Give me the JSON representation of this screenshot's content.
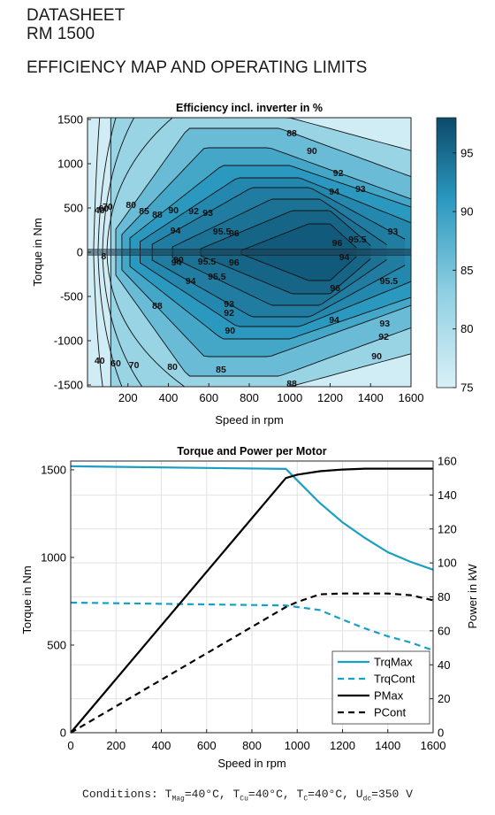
{
  "header": {
    "line1": "DATASHEET",
    "line2": "RM 1500",
    "section_title": "EFFICIENCY MAP AND OPERATING LIMITS"
  },
  "conditions": {
    "prefix": "Conditions: ",
    "t_mag_sym": "T",
    "t_mag_sub": "Mag",
    "t_mag_val": "=40°C, ",
    "t_cu_sym": "T",
    "t_cu_sub": "Cu",
    "t_cu_val": "=40°C, ",
    "t_c_sym": "T",
    "t_c_sub": "C",
    "t_c_val": "=40°C, ",
    "u_dc_sym": "U",
    "u_dc_sub": "dc",
    "u_dc_val": "=350 V"
  },
  "chart_data": [
    {
      "type": "heatmap",
      "title": "Efficiency incl. inverter in %",
      "xlabel": "Speed in rpm",
      "ylabel": "Torque in Nm",
      "xlim": [
        0,
        1600
      ],
      "ylim": [
        -1520,
        1520
      ],
      "x_ticks": [
        200,
        400,
        600,
        800,
        1000,
        1200,
        1400,
        1600
      ],
      "y_ticks": [
        1500,
        1000,
        500,
        0,
        -500,
        -1000,
        -1500
      ],
      "colorbar": {
        "range": [
          75,
          98
        ],
        "ticks": [
          95,
          90,
          85,
          80,
          75
        ],
        "colormap": [
          "#d9f0f6",
          "#0c4a6a"
        ]
      },
      "contour_levels": [
        40,
        60,
        70,
        80,
        85,
        88,
        90,
        92,
        93,
        94,
        95,
        95.5,
        96
      ],
      "contour_labels": [
        {
          "text": "88",
          "x": 1010,
          "y": 1350
        },
        {
          "text": "90",
          "x": 1110,
          "y": 1150
        },
        {
          "text": "92",
          "x": 1240,
          "y": 900
        },
        {
          "text": "93",
          "x": 1350,
          "y": 720
        },
        {
          "text": "94",
          "x": 1220,
          "y": 690
        },
        {
          "text": "40",
          "x": 60,
          "y": 480
        },
        {
          "text": "60",
          "x": 80,
          "y": 500
        },
        {
          "text": "70",
          "x": 100,
          "y": 520
        },
        {
          "text": "80",
          "x": 215,
          "y": 540
        },
        {
          "text": "85",
          "x": 280,
          "y": 470
        },
        {
          "text": "88",
          "x": 345,
          "y": 430
        },
        {
          "text": "90",
          "x": 425,
          "y": 480
        },
        {
          "text": "92",
          "x": 525,
          "y": 470
        },
        {
          "text": "93",
          "x": 595,
          "y": 450
        },
        {
          "text": "94",
          "x": 435,
          "y": 250
        },
        {
          "text": "95.5",
          "x": 665,
          "y": 240
        },
        {
          "text": "96",
          "x": 725,
          "y": 220
        },
        {
          "text": "96",
          "x": 1235,
          "y": 110
        },
        {
          "text": "95.5",
          "x": 1335,
          "y": 150
        },
        {
          "text": "93",
          "x": 1510,
          "y": 240
        },
        {
          "text": "8",
          "x": 80,
          "y": -40
        },
        {
          "text": "90",
          "x": 450,
          "y": -80
        },
        {
          "text": "94",
          "x": 440,
          "y": -110
        },
        {
          "text": "95.5",
          "x": 590,
          "y": -100
        },
        {
          "text": "96",
          "x": 725,
          "y": -110
        },
        {
          "text": "94",
          "x": 1270,
          "y": -50
        },
        {
          "text": "95.5",
          "x": 1490,
          "y": -320
        },
        {
          "text": "94",
          "x": 510,
          "y": -320
        },
        {
          "text": "95.5",
          "x": 640,
          "y": -270
        },
        {
          "text": "96",
          "x": 1225,
          "y": -400
        },
        {
          "text": "88",
          "x": 345,
          "y": -600
        },
        {
          "text": "93",
          "x": 700,
          "y": -580
        },
        {
          "text": "92",
          "x": 700,
          "y": -680
        },
        {
          "text": "90",
          "x": 705,
          "y": -880
        },
        {
          "text": "94",
          "x": 1220,
          "y": -760
        },
        {
          "text": "93",
          "x": 1470,
          "y": -800
        },
        {
          "text": "92",
          "x": 1465,
          "y": -950
        },
        {
          "text": "90",
          "x": 1430,
          "y": -1170
        },
        {
          "text": "40",
          "x": 60,
          "y": -1220
        },
        {
          "text": "60",
          "x": 140,
          "y": -1250
        },
        {
          "text": "70",
          "x": 230,
          "y": -1270
        },
        {
          "text": "80",
          "x": 420,
          "y": -1290
        },
        {
          "text": "85",
          "x": 660,
          "y": -1320
        },
        {
          "text": "88",
          "x": 1010,
          "y": -1480
        }
      ]
    },
    {
      "type": "line",
      "title": "Torque and Power per Motor",
      "xlabel": "Speed in rpm",
      "ylabel": "Torque in Nm",
      "y2label": "Power in kW",
      "xlim": [
        0,
        1600
      ],
      "ylim": [
        0,
        1550
      ],
      "y2lim": [
        0,
        160
      ],
      "x_ticks": [
        0,
        200,
        400,
        600,
        800,
        1000,
        1200,
        1400,
        1600
      ],
      "y_ticks": [
        0,
        500,
        1000,
        1500
      ],
      "y2_ticks": [
        0,
        20,
        40,
        60,
        80,
        100,
        120,
        140,
        160
      ],
      "grid": true,
      "legend_position": "bottom-right",
      "series": [
        {
          "name": "TrqMax",
          "axis": "left",
          "style": "solid",
          "color": "#1a9fc2",
          "x": [
            0,
            950,
            1000,
            1100,
            1200,
            1300,
            1400,
            1500,
            1600
          ],
          "y": [
            1520,
            1505,
            1440,
            1310,
            1200,
            1110,
            1030,
            975,
            930
          ]
        },
        {
          "name": "TrqCont",
          "axis": "left",
          "style": "dashed",
          "color": "#1a9fc2",
          "x": [
            0,
            950,
            1100,
            1200,
            1300,
            1400,
            1500,
            1600
          ],
          "y": [
            742,
            726,
            700,
            645,
            595,
            550,
            515,
            470
          ]
        },
        {
          "name": "PMax",
          "axis": "right",
          "style": "solid",
          "color": "#000000",
          "x": [
            0,
            950,
            1000,
            1100,
            1200,
            1300,
            1400,
            1500,
            1600
          ],
          "y": [
            0,
            150,
            152,
            154,
            155,
            155.5,
            155.5,
            155.5,
            155.5
          ]
        },
        {
          "name": "PCont",
          "axis": "right",
          "style": "dashed",
          "color": "#000000",
          "x": [
            0,
            950,
            1000,
            1100,
            1200,
            1300,
            1400,
            1500,
            1600
          ],
          "y": [
            0,
            74,
            77,
            81.5,
            82,
            82,
            82,
            81,
            78
          ]
        }
      ]
    }
  ]
}
